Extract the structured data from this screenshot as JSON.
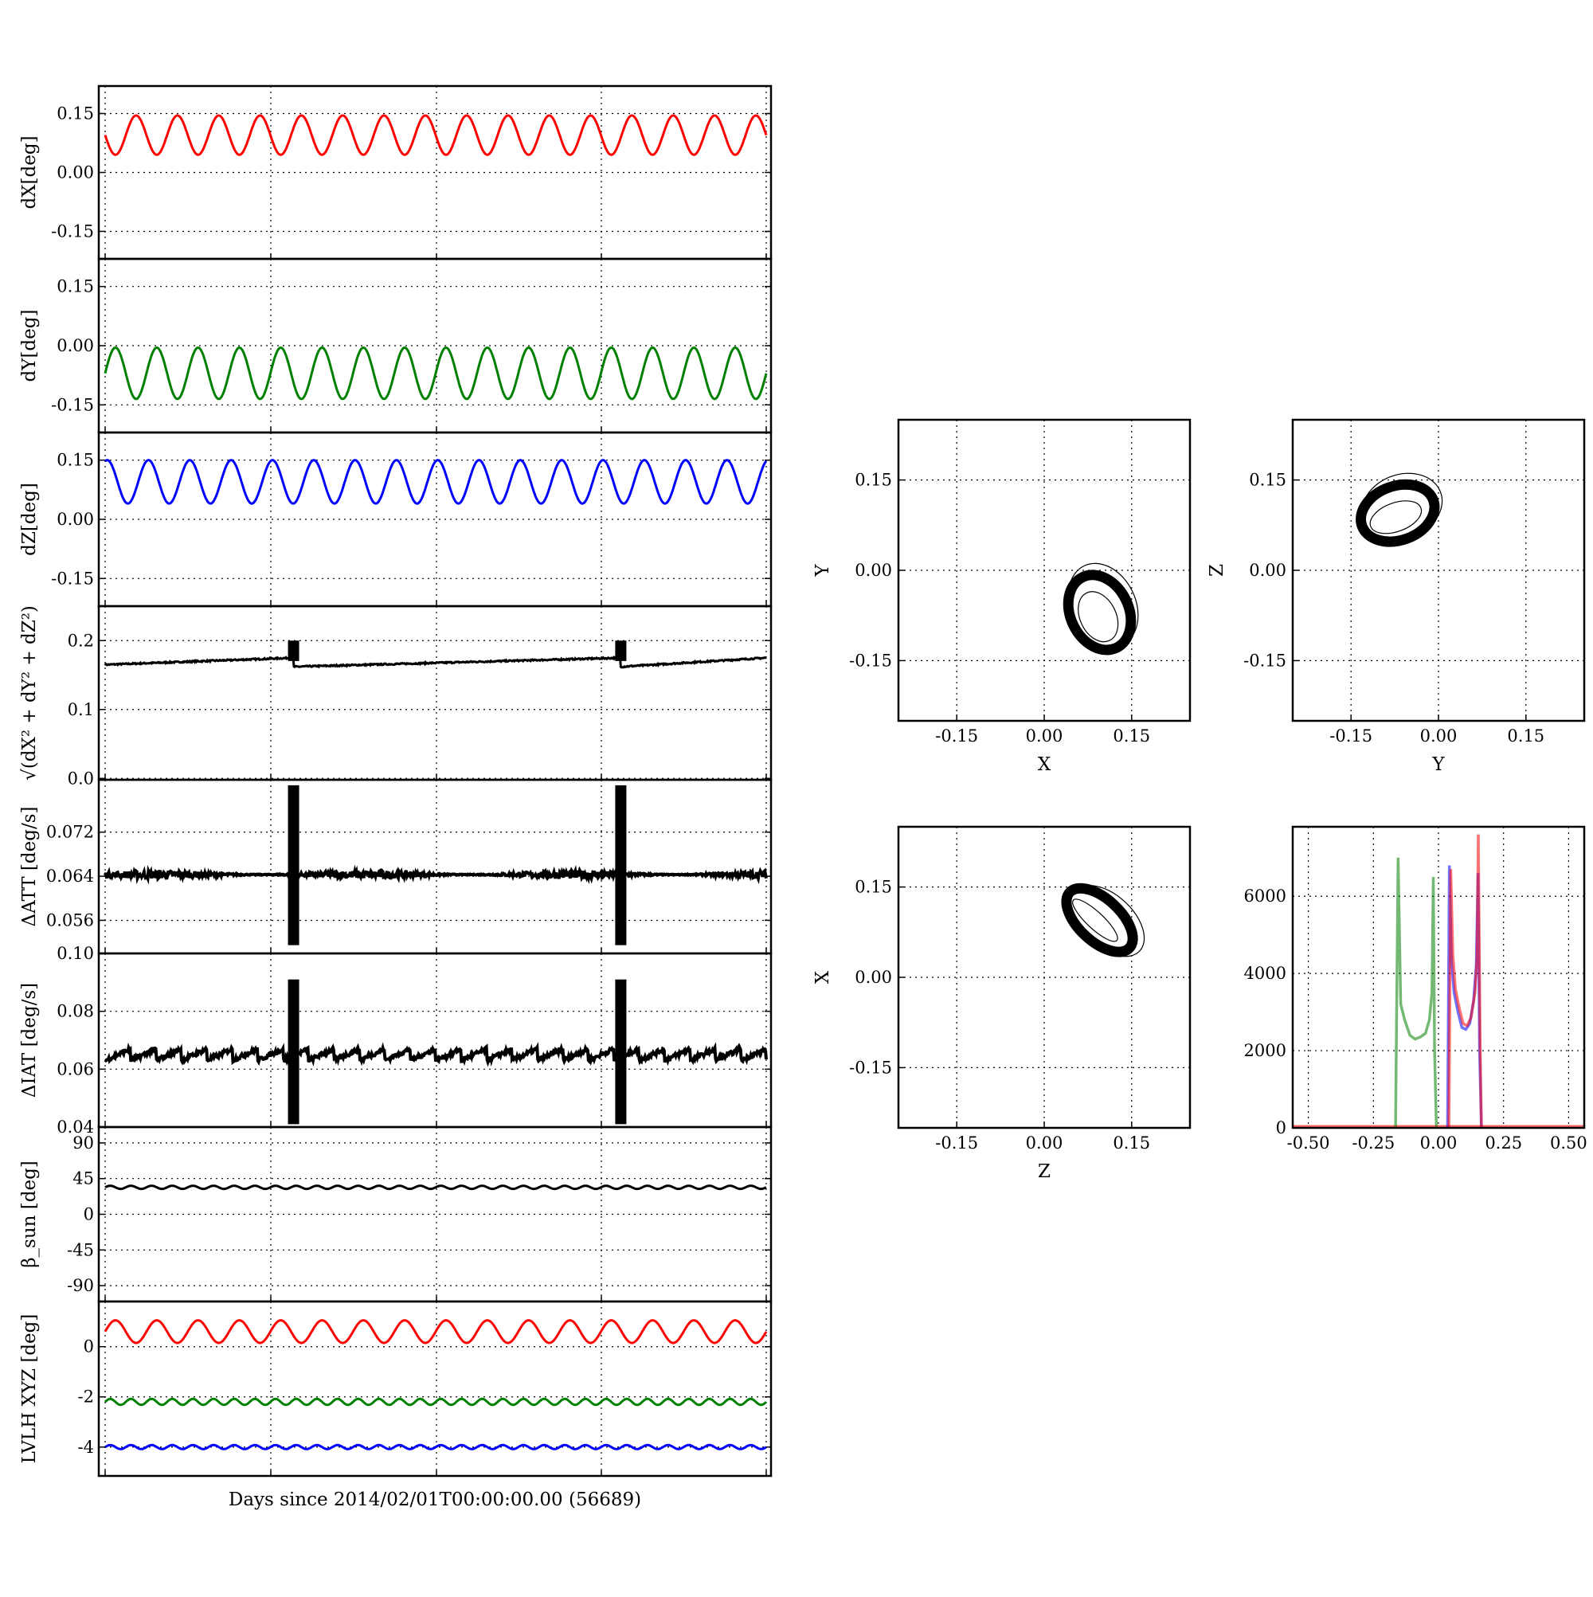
{
  "figure": {
    "xlabel": "Days since 2014/02/01T00:00:00.00 (56689)"
  },
  "colors": {
    "x": "#ff0000",
    "y": "#008000",
    "z": "#0000ff",
    "black": "#000000"
  },
  "chart_data": [
    {
      "id": "dX",
      "type": "line",
      "ylabel": "dX[deg]",
      "ylim": [
        -0.22,
        0.22
      ],
      "yticks": [
        "0.15",
        "0.00",
        "-0.15"
      ],
      "grid": true,
      "series": [
        {
          "color": "#ff0000",
          "mean": 0.095,
          "amplitude": 0.05,
          "cycles": 16,
          "phase": 0.5
        }
      ]
    },
    {
      "id": "dY",
      "type": "line",
      "ylabel": "dY[deg]",
      "ylim": [
        -0.22,
        0.22
      ],
      "yticks": [
        "0.15",
        "0.00",
        "-0.15"
      ],
      "grid": true,
      "series": [
        {
          "color": "#008000",
          "mean": -0.07,
          "amplitude": 0.065,
          "cycles": 16,
          "phase": 0.0
        }
      ]
    },
    {
      "id": "dZ",
      "type": "line",
      "ylabel": "dZ[deg]",
      "ylim": [
        -0.22,
        0.22
      ],
      "yticks": [
        "0.15",
        "0.00",
        "-0.15"
      ],
      "grid": true,
      "series": [
        {
          "color": "#0000ff",
          "mean": 0.095,
          "amplitude": 0.055,
          "cycles": 16,
          "phase": 0.2
        }
      ]
    },
    {
      "id": "norm",
      "type": "line",
      "ylabel": "√(dX² + dY² + dZ²)",
      "ylim": [
        -0.002,
        0.25
      ],
      "yticks": [
        "0.2",
        "0.1",
        "0.0"
      ],
      "grid": true,
      "series": [
        {
          "color": "#000000",
          "start": 0.165,
          "end": 0.175,
          "after_jump": 0.162,
          "spike": 0.2
        }
      ]
    },
    {
      "id": "dATT",
      "type": "line",
      "ylabel": "ΔATT [deg/s]",
      "ylim": [
        0.05,
        0.0815
      ],
      "yticks": [
        "0.072",
        "0.064",
        "0.056"
      ],
      "grid": true,
      "series": [
        {
          "color": "#000000",
          "mean": 0.0643,
          "noise": 0.0006,
          "spike_low": 0.0515,
          "spike_high": 0.0805
        }
      ]
    },
    {
      "id": "dIAT",
      "type": "line",
      "ylabel": "ΔIAT [deg/s]",
      "ylim": [
        0.04,
        0.1
      ],
      "yticks": [
        "0.10",
        "0.08",
        "0.06",
        "0.04"
      ],
      "grid": true,
      "series": [
        {
          "color": "#000000",
          "low": 0.063,
          "high": 0.067,
          "sawtooth_cycles": 26,
          "spike_low": 0.041,
          "spike_high": 0.091
        }
      ]
    },
    {
      "id": "beta_sun",
      "type": "line",
      "ylabel": "β_sun [deg]",
      "ylim": [
        -110,
        110
      ],
      "yticks": [
        "90",
        "45",
        "0",
        "-45",
        "-90"
      ],
      "grid": true,
      "series": [
        {
          "color": "#000000",
          "mean": 34,
          "amplitude": 2,
          "cycles": 32
        }
      ]
    },
    {
      "id": "lvlh",
      "type": "line",
      "ylabel": "LVLH XYZ [deg]",
      "ylim": [
        -5.15,
        1.8
      ],
      "yticks": [
        "0",
        "-2",
        "-4"
      ],
      "grid": true,
      "series": [
        {
          "color": "#ff0000",
          "mean": 0.6,
          "amplitude": 0.45,
          "cycles": 16
        },
        {
          "color": "#008000",
          "mean": -2.2,
          "amplitude": 0.12,
          "cycles": 32
        },
        {
          "color": "#0000ff",
          "mean": -4.0,
          "amplitude": 0.08,
          "cycles": 32
        }
      ]
    },
    {
      "id": "XY",
      "type": "scatter",
      "xlabel": "X",
      "ylabel": "Y",
      "xlim": [
        -0.25,
        0.25
      ],
      "ylim": [
        -0.25,
        0.25
      ],
      "xticks": [
        "-0.15",
        "0.00",
        "0.15"
      ],
      "yticks": [
        "0.15",
        "0.00",
        "-0.15"
      ],
      "grid": true,
      "ellipse": {
        "cx": 0.095,
        "cy": -0.07,
        "rx": 0.05,
        "ry": 0.065,
        "rot": 0.45
      }
    },
    {
      "id": "YZ",
      "type": "scatter",
      "xlabel": "Y",
      "ylabel": "Z",
      "xlim": [
        -0.25,
        0.25
      ],
      "ylim": [
        -0.25,
        0.25
      ],
      "xticks": [
        "-0.15",
        "0.00",
        "0.15"
      ],
      "yticks": [
        "0.15",
        "0.00",
        "-0.15"
      ],
      "grid": true,
      "ellipse": {
        "cx": -0.07,
        "cy": 0.095,
        "rx": 0.065,
        "ry": 0.045,
        "rot": 0.35
      }
    },
    {
      "id": "ZX",
      "type": "scatter",
      "xlabel": "Z",
      "ylabel": "X",
      "xlim": [
        -0.25,
        0.25
      ],
      "ylim": [
        -0.25,
        0.25
      ],
      "xticks": [
        "-0.15",
        "0.00",
        "0.15"
      ],
      "yticks": [
        "0.15",
        "0.00",
        "-0.15"
      ],
      "grid": true,
      "ellipse": {
        "cx": 0.095,
        "cy": 0.095,
        "rx": 0.07,
        "ry": 0.035,
        "rot": -0.75
      }
    },
    {
      "id": "hist",
      "type": "line",
      "xlim": [
        -0.56,
        0.56
      ],
      "ylim": [
        0,
        7800
      ],
      "xticks": [
        "-0.50",
        "-0.25",
        "0.00",
        "0.25",
        "0.50"
      ],
      "yticks": [
        "6000",
        "4000",
        "2000",
        "0"
      ],
      "grid": true,
      "series": [
        {
          "color": "#008000",
          "x": [
            -0.165,
            -0.155,
            -0.145,
            -0.13,
            -0.11,
            -0.09,
            -0.07,
            -0.05,
            -0.035,
            -0.025,
            -0.02,
            -0.015,
            -0.008
          ],
          "y": [
            0,
            7000,
            3200,
            2800,
            2400,
            2300,
            2350,
            2450,
            2800,
            3500,
            6500,
            2000,
            0
          ]
        },
        {
          "color": "#0000ff",
          "x": [
            0.035,
            0.042,
            0.05,
            0.06,
            0.075,
            0.09,
            0.105,
            0.12,
            0.135,
            0.145,
            0.152,
            0.158,
            0.165
          ],
          "y": [
            0,
            6800,
            4300,
            3500,
            3000,
            2600,
            2550,
            2700,
            3300,
            4200,
            6600,
            2000,
            0
          ]
        },
        {
          "color": "#ff0000",
          "x": [
            0.04,
            0.047,
            0.055,
            0.065,
            0.08,
            0.095,
            0.11,
            0.125,
            0.14,
            0.148,
            0.153,
            0.16,
            0.165
          ],
          "y": [
            0,
            6700,
            4500,
            3600,
            3100,
            2700,
            2650,
            2850,
            3500,
            4400,
            7600,
            2200,
            0
          ]
        }
      ]
    }
  ]
}
